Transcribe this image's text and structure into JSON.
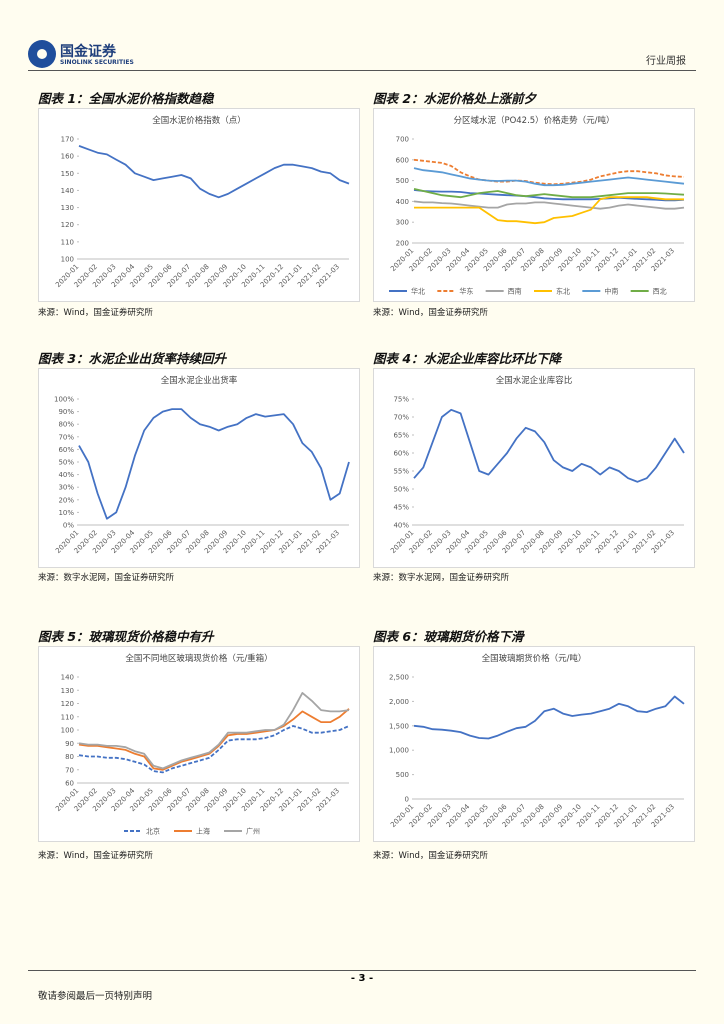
{
  "header": {
    "logo_cn": "国金证券",
    "logo_en": "SINOLINK SECURITIES",
    "report_type": "行业周报"
  },
  "figures": [
    {
      "title": "图表 1：全国水泥价格指数趋稳",
      "source": "来源：Wind，国金证券研究所"
    },
    {
      "title": "图表 2：水泥价格处上涨前夕",
      "source": "来源：Wind，国金证券研究所"
    },
    {
      "title": "图表 3：水泥企业出货率持续回升",
      "source": "来源：数字水泥网，国金证券研究所"
    },
    {
      "title": "图表 4：水泥企业库容比环比下降",
      "source": "来源：数字水泥网，国金证券研究所"
    },
    {
      "title": "图表 5：玻璃现货价格稳中有升",
      "source": "来源：Wind，国金证券研究所"
    },
    {
      "title": "图表 6：玻璃期货价格下滑",
      "source": "来源：Wind，国金证券研究所"
    }
  ],
  "chart_data": [
    {
      "type": "line",
      "title": "全国水泥价格指数（点）",
      "categories": [
        "2020-01",
        null,
        "2020-02",
        null,
        "2020-03",
        null,
        "2020-04",
        null,
        "2020-05",
        null,
        "2020-06",
        null,
        "2020-07",
        null,
        "2020-08",
        null,
        "2020-09",
        null,
        "2020-10",
        null,
        "2020-11",
        null,
        "2020-12",
        null,
        "2021-01",
        null,
        "2021-02",
        null,
        "2021-03",
        null
      ],
      "values": [
        166,
        164,
        162,
        161,
        158,
        155,
        150,
        148,
        146,
        147,
        148,
        149,
        147,
        141,
        138,
        136,
        138,
        141,
        144,
        147,
        150,
        153,
        155,
        155,
        154,
        153,
        151,
        150,
        146,
        144
      ],
      "color": "#4472c4",
      "ylim": [
        100,
        170
      ],
      "yticks": [
        100,
        110,
        120,
        130,
        140,
        150,
        160,
        170
      ]
    },
    {
      "type": "line",
      "title": "分区域水泥（PO42.5）价格走势（元/吨）",
      "categories": [
        "2020-01",
        null,
        "2020-02",
        null,
        "2020-03",
        null,
        "2020-04",
        null,
        "2020-05",
        null,
        "2020-06",
        null,
        "2020-07",
        null,
        "2020-08",
        null,
        "2020-09",
        null,
        "2020-10",
        null,
        "2020-11",
        null,
        "2020-12",
        null,
        "2021-01",
        null,
        "2021-02",
        null,
        "2021-03",
        null
      ],
      "series": [
        {
          "name": "华北",
          "color": "#4472c4",
          "values": [
            455,
            450,
            448,
            447,
            447,
            445,
            440,
            438,
            435,
            432,
            430,
            428,
            425,
            420,
            415,
            412,
            410,
            410,
            410,
            410,
            412,
            415,
            418,
            415,
            412,
            410,
            408,
            405,
            405,
            408
          ]
        },
        {
          "name": "华东",
          "color": "#ed7d31",
          "dashed": true,
          "values": [
            600,
            595,
            590,
            585,
            570,
            540,
            520,
            505,
            500,
            495,
            495,
            500,
            498,
            490,
            485,
            482,
            485,
            490,
            495,
            505,
            520,
            530,
            540,
            545,
            545,
            540,
            535,
            525,
            520,
            518
          ]
        },
        {
          "name": "西南",
          "color": "#a5a5a5",
          "values": [
            400,
            395,
            395,
            392,
            390,
            385,
            380,
            375,
            370,
            370,
            385,
            390,
            390,
            395,
            395,
            390,
            385,
            380,
            375,
            370,
            365,
            370,
            380,
            385,
            380,
            375,
            370,
            365,
            365,
            370
          ]
        },
        {
          "name": "东北",
          "color": "#ffc000",
          "values": [
            370,
            370,
            370,
            370,
            370,
            370,
            370,
            370,
            340,
            310,
            305,
            305,
            300,
            295,
            300,
            320,
            325,
            330,
            345,
            360,
            410,
            420,
            420,
            420,
            420,
            420,
            415,
            410,
            410,
            410
          ]
        },
        {
          "name": "中南",
          "color": "#5b9bd5",
          "values": [
            560,
            550,
            545,
            540,
            530,
            520,
            510,
            505,
            500,
            498,
            500,
            500,
            495,
            485,
            478,
            478,
            480,
            485,
            490,
            495,
            500,
            505,
            510,
            515,
            510,
            505,
            500,
            495,
            490,
            485
          ]
        },
        {
          "name": "西北",
          "color": "#70ad47",
          "values": [
            460,
            450,
            440,
            430,
            425,
            420,
            430,
            440,
            445,
            450,
            440,
            430,
            425,
            430,
            435,
            430,
            425,
            420,
            420,
            420,
            425,
            430,
            435,
            440,
            440,
            440,
            440,
            438,
            435,
            432
          ]
        }
      ],
      "ylim": [
        200,
        700
      ],
      "yticks": [
        200,
        300,
        400,
        500,
        600,
        700
      ],
      "legend": "bottom"
    },
    {
      "type": "line",
      "title": "全国水泥企业出货率",
      "categories": [
        "2020-01",
        null,
        "2020-02",
        null,
        "2020-03",
        null,
        "2020-04",
        null,
        "2020-05",
        null,
        "2020-06",
        null,
        "2020-07",
        null,
        "2020-08",
        null,
        "2020-09",
        null,
        "2020-10",
        null,
        "2020-11",
        null,
        "2020-12",
        null,
        "2021-01",
        null,
        "2021-02",
        null,
        "2021-03",
        null
      ],
      "values": [
        63,
        50,
        25,
        5,
        10,
        30,
        55,
        75,
        85,
        90,
        92,
        92,
        85,
        80,
        78,
        75,
        78,
        80,
        85,
        88,
        86,
        87,
        88,
        80,
        65,
        58,
        45,
        20,
        25,
        50
      ],
      "color": "#4472c4",
      "ylim": [
        0,
        100
      ],
      "yticks": [
        {
          "value": 0,
          "label": "0%"
        },
        {
          "value": 10,
          "label": "10%"
        },
        {
          "value": 20,
          "label": "20%"
        },
        {
          "value": 30,
          "label": "30%"
        },
        {
          "value": 40,
          "label": "40%"
        },
        {
          "value": 50,
          "label": "50%"
        },
        {
          "value": 60,
          "label": "60%"
        },
        {
          "value": 70,
          "label": "70%"
        },
        {
          "value": 80,
          "label": "80%"
        },
        {
          "value": 90,
          "label": "90%"
        },
        {
          "value": 100,
          "label": "100%"
        }
      ]
    },
    {
      "type": "line",
      "title": "全国水泥企业库容比",
      "categories": [
        "2020-01",
        null,
        "2020-02",
        null,
        "2020-03",
        null,
        "2020-04",
        null,
        "2020-05",
        null,
        "2020-06",
        null,
        "2020-07",
        null,
        "2020-08",
        null,
        "2020-09",
        null,
        "2020-10",
        null,
        "2020-11",
        null,
        "2020-12",
        null,
        "2021-01",
        null,
        "2021-02",
        null,
        "2021-03",
        null
      ],
      "values": [
        53,
        56,
        63,
        70,
        72,
        71,
        63,
        55,
        54,
        57,
        60,
        64,
        67,
        66,
        63,
        58,
        56,
        55,
        57,
        56,
        54,
        56,
        55,
        53,
        52,
        53,
        56,
        60,
        64,
        60
      ],
      "color": "#4472c4",
      "ylim": [
        40,
        75
      ],
      "yticks": [
        {
          "value": 40,
          "label": "40%"
        },
        {
          "value": 45,
          "label": "45%"
        },
        {
          "value": 50,
          "label": "50%"
        },
        {
          "value": 55,
          "label": "55%"
        },
        {
          "value": 60,
          "label": "60%"
        },
        {
          "value": 65,
          "label": "65%"
        },
        {
          "value": 70,
          "label": "70%"
        },
        {
          "value": 75,
          "label": "75%"
        }
      ]
    },
    {
      "type": "line",
      "title": "全国不同地区玻璃现货价格（元/重箱）",
      "categories": [
        "2020-01",
        null,
        "2020-02",
        null,
        "2020-03",
        null,
        "2020-04",
        null,
        "2020-05",
        null,
        "2020-06",
        null,
        "2020-07",
        null,
        "2020-08",
        null,
        "2020-09",
        null,
        "2020-10",
        null,
        "2020-11",
        null,
        "2020-12",
        null,
        "2021-01",
        null,
        "2021-02",
        null,
        "2021-03",
        null
      ],
      "series": [
        {
          "name": "北京",
          "color": "#4472c4",
          "dashed": true,
          "values": [
            81,
            80,
            80,
            79,
            79,
            78,
            76,
            74,
            69,
            68,
            71,
            73,
            75,
            77,
            79,
            85,
            92,
            93,
            93,
            93,
            94,
            96,
            100,
            103,
            101,
            98,
            98,
            99,
            100,
            103
          ]
        },
        {
          "name": "上海",
          "color": "#ed7d31",
          "values": [
            89,
            88,
            88,
            87,
            86,
            85,
            82,
            80,
            71,
            70,
            73,
            76,
            78,
            80,
            82,
            88,
            96,
            97,
            97,
            98,
            99,
            100,
            103,
            108,
            114,
            110,
            106,
            106,
            110,
            116
          ]
        },
        {
          "name": "广州",
          "color": "#a5a5a5",
          "values": [
            90,
            89,
            89,
            88,
            88,
            87,
            84,
            82,
            73,
            71,
            74,
            77,
            79,
            81,
            83,
            89,
            98,
            98,
            98,
            99,
            100,
            100,
            104,
            115,
            128,
            122,
            115,
            114,
            114,
            115
          ]
        }
      ],
      "ylim": [
        60,
        140
      ],
      "yticks": [
        60,
        70,
        80,
        90,
        100,
        110,
        120,
        130,
        140
      ],
      "legend": "bottom"
    },
    {
      "type": "line",
      "title": "全国玻璃期货价格（元/吨）",
      "categories": [
        "2020-01",
        null,
        "2020-02",
        null,
        "2020-03",
        null,
        "2020-04",
        null,
        "2020-05",
        null,
        "2020-06",
        null,
        "2020-07",
        null,
        "2020-08",
        null,
        "2020-09",
        null,
        "2020-10",
        null,
        "2020-11",
        null,
        "2020-12",
        null,
        "2021-01",
        null,
        "2021-02",
        null,
        "2021-03",
        null
      ],
      "values": [
        1500,
        1480,
        1430,
        1420,
        1400,
        1370,
        1300,
        1250,
        1240,
        1300,
        1380,
        1450,
        1480,
        1600,
        1800,
        1850,
        1750,
        1700,
        1730,
        1750,
        1800,
        1850,
        1950,
        1900,
        1800,
        1780,
        1850,
        1900,
        2100,
        1950
      ],
      "color": "#4472c4",
      "ylim": [
        0,
        2500
      ],
      "yticks": [
        0,
        500,
        {
          "value": 1000,
          "label": "1,000"
        },
        {
          "value": 1500,
          "label": "1,500"
        },
        {
          "value": 2000,
          "label": "2,000"
        },
        {
          "value": 2500,
          "label": "2,500"
        }
      ]
    }
  ],
  "footer": {
    "page": "- 3 -",
    "disclaimer": "敬请参阅最后一页特别声明"
  }
}
